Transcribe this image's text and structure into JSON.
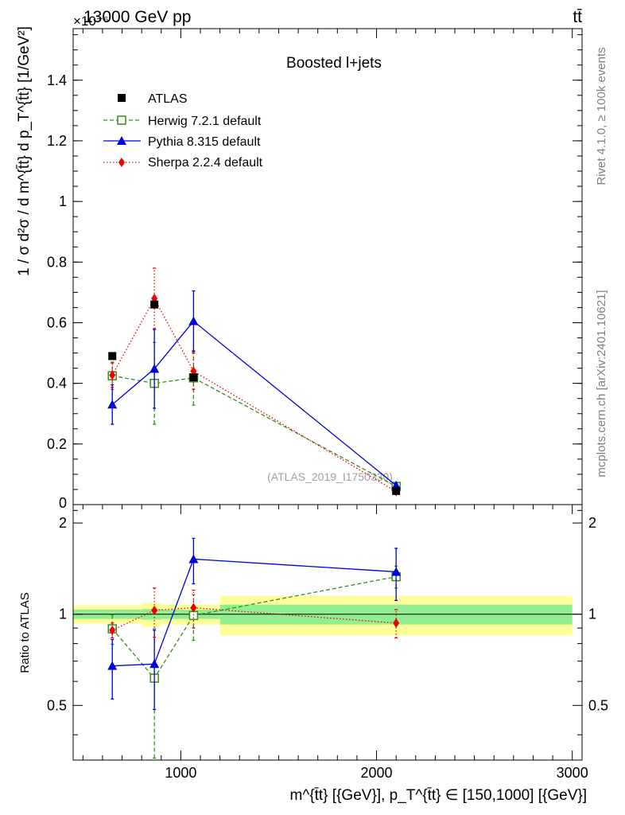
{
  "header": {
    "left_title": "13000 GeV pp",
    "right_title": "tt̄",
    "exponent_label": "×10⁻⁶",
    "analysis_tag": "(ATLAS_2019_I1750330)",
    "rivet_label": "Rivet 4.1.0, ≥ 100k events",
    "mcplots_label": "mcplots.cern.ch [arXiv:2401.10621]"
  },
  "colors": {
    "atlas": "#000000",
    "herwig": "#3a8c1a",
    "pythia": "#0000dd",
    "sherpa": "#ee0000",
    "band_inner": "#90ee90",
    "band_outer": "#ffff99"
  },
  "chart_data": [
    {
      "type": "scatter",
      "panel": "main",
      "title": "Boosted l+jets",
      "xlabel": "m^{t̄t} [{GeV}], p_T^{t̄t} ∈ [150,1000] [{GeV}]",
      "ylabel": "1 / σ d²σ / d m^{t̄t} d p_T^{t̄t} [1/GeV²]",
      "xlim": [
        450,
        3050
      ],
      "ylim": [
        0,
        1.57
      ],
      "yticks": [
        0.2,
        0.4,
        0.6,
        0.8,
        1,
        1.2,
        1.4
      ],
      "ytick_labels": [
        "0.2",
        "0.4",
        "0.6",
        "0.8",
        "1",
        "1.2",
        "1.4"
      ],
      "y0_label": "0",
      "y_scale_note": "×10⁻⁶",
      "legend_position": "top-left",
      "series": [
        {
          "name": "ATLAS",
          "key": "atlas",
          "x": [
            650,
            865,
            1065,
            2100
          ],
          "y": [
            0.49,
            0.66,
            0.42,
            0.045
          ],
          "yerr": [
            0.01,
            0.01,
            0.01,
            0.002
          ]
        },
        {
          "name": "Herwig 7.2.1 default",
          "key": "herwig",
          "x": [
            650,
            865,
            1065,
            2100
          ],
          "y": [
            0.425,
            0.4,
            0.418,
            0.06
          ],
          "yerr": [
            0.045,
            0.135,
            0.09,
            0.005
          ]
        },
        {
          "name": "Pythia 8.315 default",
          "key": "pythia",
          "x": [
            650,
            865,
            1065,
            2100
          ],
          "y": [
            0.33,
            0.448,
            0.605,
            0.063
          ],
          "yerr": [
            0.065,
            0.13,
            0.1,
            0.008
          ]
        },
        {
          "name": "Sherpa 2.2.4 default",
          "key": "sherpa",
          "x": [
            650,
            865,
            1065,
            2100
          ],
          "y": [
            0.427,
            0.68,
            0.44,
            0.043
          ],
          "yerr": [
            0.04,
            0.1,
            0.06,
            0.004
          ]
        }
      ]
    },
    {
      "type": "scatter",
      "panel": "ratio",
      "ylabel": "Ratio to ATLAS",
      "xlim": [
        450,
        3050
      ],
      "ylim": [
        0.33,
        2.3
      ],
      "yticks": [
        0.5,
        1,
        2
      ],
      "ytick_labels": [
        "0.5",
        "1",
        "2"
      ],
      "xticks": [
        1000,
        2000,
        3000
      ],
      "xtick_labels": [
        "1000",
        "2000",
        "3000"
      ],
      "reference_line": 1,
      "bands": [
        {
          "x0": 450,
          "x1": 800,
          "inner": [
            0.965,
            1.035
          ],
          "outer": [
            0.93,
            1.07
          ]
        },
        {
          "x0": 800,
          "x1": 900,
          "inner": [
            0.96,
            1.04
          ],
          "outer": [
            0.91,
            1.09
          ]
        },
        {
          "x0": 900,
          "x1": 1200,
          "inner": [
            0.965,
            1.035
          ],
          "outer": [
            0.925,
            1.075
          ]
        },
        {
          "x0": 1200,
          "x1": 3000,
          "inner": [
            0.925,
            1.075
          ],
          "outer": [
            0.85,
            1.15
          ]
        }
      ],
      "series": [
        {
          "name": "Herwig 7.2.1 default",
          "key": "herwig",
          "x": [
            650,
            865,
            1065,
            2100
          ],
          "y": [
            0.895,
            0.615,
            0.99,
            1.33
          ],
          "yerr": [
            0.1,
            0.28,
            0.17,
            0.11
          ]
        },
        {
          "name": "Pythia 8.315 default",
          "key": "pythia",
          "x": [
            650,
            865,
            1065,
            2100
          ],
          "y": [
            0.675,
            0.685,
            1.52,
            1.38
          ],
          "yerr": [
            0.15,
            0.2,
            0.26,
            0.27
          ]
        },
        {
          "name": "Sherpa 2.2.4 default",
          "key": "sherpa",
          "x": [
            650,
            865,
            1065,
            2100
          ],
          "y": [
            0.885,
            1.03,
            1.05,
            0.935
          ],
          "yerr": [
            0.05,
            0.19,
            0.15,
            0.1
          ]
        }
      ]
    }
  ]
}
